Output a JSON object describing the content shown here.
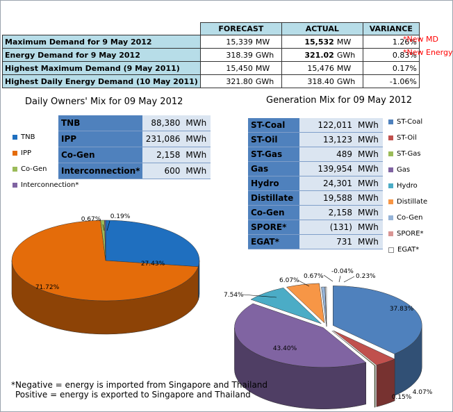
{
  "summary": {
    "headers": {
      "forecast": "FORECAST",
      "actual": "ACTUAL",
      "variance": "VARIANCE"
    },
    "rows": [
      {
        "label": "Maximum Demand for 9 May 2012",
        "forecast": "15,339",
        "forecast_unit": "MW",
        "actual": "15,532",
        "actual_unit": "MW",
        "variance": "1.26%",
        "note": "*New MD"
      },
      {
        "label": "Energy Demand for 9 May 2012",
        "forecast": "318.39",
        "forecast_unit": "GWh",
        "actual": "321.02",
        "actual_unit": "GWh",
        "variance": "0.83%",
        "note": "*New Energy"
      },
      {
        "label": "Highest Maximum Demand (9 May 2011)",
        "forecast": "15,450",
        "forecast_unit": "MW",
        "actual": "15,476",
        "actual_unit": "MW",
        "variance": "0.17%",
        "note": ""
      },
      {
        "label": "Highest Daily Energy Demand (10 May 2011)",
        "forecast": "321.80",
        "forecast_unit": "GWh",
        "actual": "318.40",
        "actual_unit": "GWh",
        "variance": "-1.06%",
        "note": ""
      }
    ]
  },
  "owners": {
    "title": "Daily Owners' Mix for 09 May 2012",
    "table": [
      {
        "name": "TNB",
        "value": "88,380",
        "unit": "MWh"
      },
      {
        "name": "IPP",
        "value": "231,086",
        "unit": "MWh"
      },
      {
        "name": "Co-Gen",
        "value": "2,158",
        "unit": "MWh"
      },
      {
        "name": "Interconnection*",
        "value": "600",
        "unit": "MWh"
      }
    ],
    "legend": [
      "TNB",
      "IPP",
      "Co-Gen",
      "Interconnection*"
    ]
  },
  "generation": {
    "title": "Generation Mix for 09 May 2012",
    "table": [
      {
        "name": "ST-Coal",
        "value": "122,011",
        "unit": "MWh"
      },
      {
        "name": "ST-Oil",
        "value": "13,123",
        "unit": "MWh"
      },
      {
        "name": "ST-Gas",
        "value": "489",
        "unit": "MWh"
      },
      {
        "name": "Gas",
        "value": "139,954",
        "unit": "MWh"
      },
      {
        "name": "Hydro",
        "value": "24,301",
        "unit": "MWh"
      },
      {
        "name": "Distillate",
        "value": "19,588",
        "unit": "MWh"
      },
      {
        "name": "Co-Gen",
        "value": "2,158",
        "unit": "MWh"
      },
      {
        "name": "SPORE*",
        "value": "(131)",
        "unit": "MWh"
      },
      {
        "name": "EGAT*",
        "value": "731",
        "unit": "MWh"
      }
    ],
    "legend": [
      "ST-Coal",
      "ST-Oil",
      "ST-Gas",
      "Gas",
      "Hydro",
      "Distillate",
      "Co-Gen",
      "SPORE*",
      "EGAT*"
    ]
  },
  "chart_data": [
    {
      "type": "pie",
      "title": "Daily Owners' Mix for 09 May 2012",
      "categories": [
        "TNB",
        "IPP",
        "Co-Gen",
        "Interconnection*"
      ],
      "values": [
        27.43,
        71.72,
        0.67,
        0.19
      ],
      "labels": [
        "27.43%",
        "71.72%",
        "0.67%",
        "0.19%"
      ],
      "colors": [
        "#1f6fbf",
        "#e46c0a",
        "#9bbb59",
        "#8064a2"
      ],
      "legend_position": "top-left"
    },
    {
      "type": "pie",
      "title": "Generation Mix for 09 May 2012",
      "categories": [
        "ST-Coal",
        "ST-Oil",
        "ST-Gas",
        "Gas",
        "Hydro",
        "Distillate",
        "Co-Gen",
        "SPORE*",
        "EGAT*"
      ],
      "values": [
        37.83,
        4.07,
        0.15,
        43.4,
        7.54,
        6.07,
        0.67,
        -0.04,
        0.23
      ],
      "labels": [
        "37.83%",
        "4.07%",
        "0.15%",
        "43.40%",
        "7.54%",
        "6.07%",
        "0.67%",
        "-0.04%",
        "0.23%"
      ],
      "colors": [
        "#4f81bd",
        "#c0504d",
        "#9bbb59",
        "#8064a2",
        "#4bacc6",
        "#f79646",
        "#95b3d7",
        "#d99694",
        "#ffffff"
      ],
      "legend_position": "right"
    }
  ],
  "footnote": {
    "line1": "*Negative = energy is imported from Singapore and Thailand",
    "line2": "Positive = energy is exported to Singapore and Thailand"
  }
}
